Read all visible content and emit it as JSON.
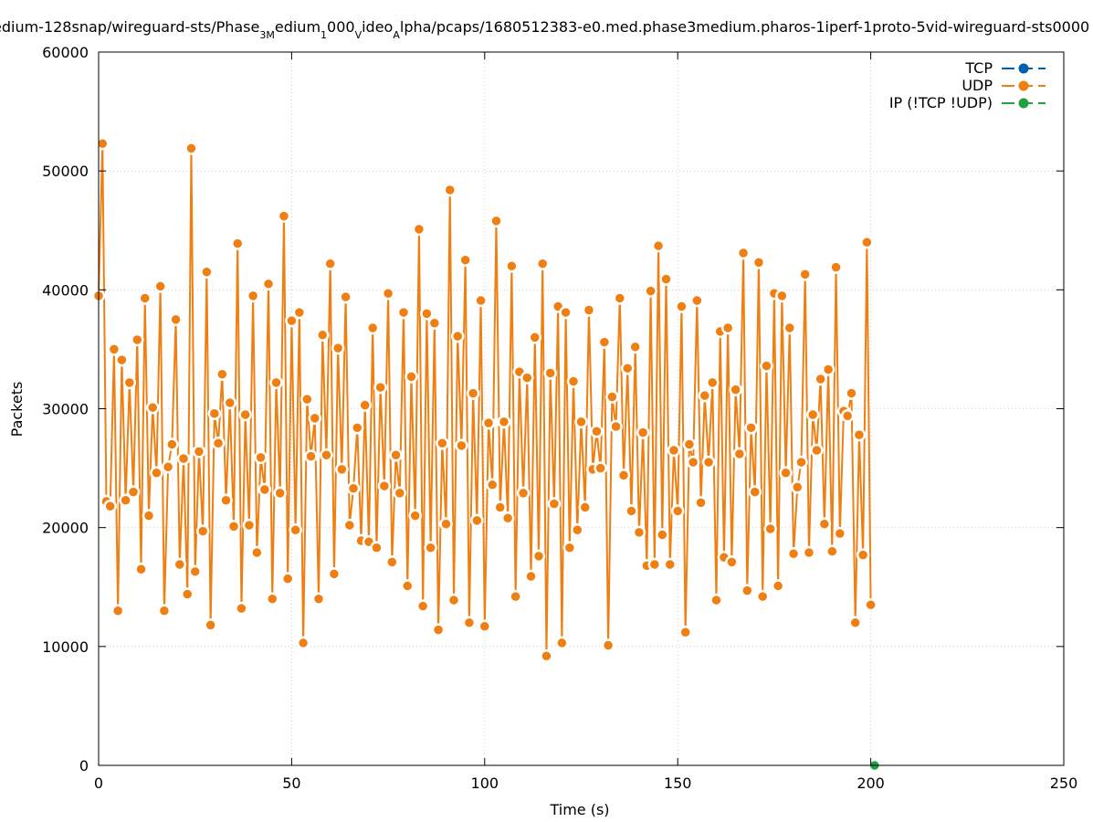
{
  "chart_data": {
    "type": "line",
    "title": {
      "part1": "edium-128snap/wireguard-sts/Phase",
      "sub1": "3M",
      "part2": "edium",
      "sub2": "1",
      "part3": "000",
      "sub3": "V",
      "part4": "ideo",
      "sub4": "A",
      "part5": "lpha/pcaps/1680512383-e0.med.phase3medium.pharos-1iperf-1proto-5vid-wireguard-sts0000"
    },
    "xlabel": "Time (s)",
    "ylabel": "Packets",
    "xlim": [
      0,
      250
    ],
    "ylim": [
      0,
      60000
    ],
    "xticks": [
      0,
      50,
      100,
      150,
      200,
      250
    ],
    "yticks": [
      0,
      10000,
      20000,
      30000,
      40000,
      50000,
      60000
    ],
    "grid": true,
    "legend_position": "top-right",
    "series": [
      {
        "name": "TCP",
        "color": "#0060ad",
        "x": [],
        "y": []
      },
      {
        "name": "UDP",
        "color": "#f07f12",
        "x": [
          0,
          1,
          2,
          3,
          4,
          5,
          6,
          7,
          8,
          9,
          10,
          11,
          12,
          13,
          14,
          15,
          16,
          17,
          18,
          19,
          20,
          21,
          22,
          23,
          24,
          25,
          26,
          27,
          28,
          29,
          30,
          31,
          32,
          33,
          34,
          35,
          36,
          37,
          38,
          39,
          40,
          41,
          42,
          43,
          44,
          45,
          46,
          47,
          48,
          49,
          50,
          51,
          52,
          53,
          54,
          55,
          56,
          57,
          58,
          59,
          60,
          61,
          62,
          63,
          64,
          65,
          66,
          67,
          68,
          69,
          70,
          71,
          72,
          73,
          74,
          75,
          76,
          77,
          78,
          79,
          80,
          81,
          82,
          83,
          84,
          85,
          86,
          87,
          88,
          89,
          90,
          91,
          92,
          93,
          94,
          95,
          96,
          97,
          98,
          99,
          100,
          101,
          102,
          103,
          104,
          105,
          106,
          107,
          108,
          109,
          110,
          111,
          112,
          113,
          114,
          115,
          116,
          117,
          118,
          119,
          120,
          121,
          122,
          123,
          124,
          125,
          126,
          127,
          128,
          129,
          130,
          131,
          132,
          133,
          134,
          135,
          136,
          137,
          138,
          139,
          140,
          141,
          142,
          143,
          144,
          145,
          146,
          147,
          148,
          149,
          150,
          151,
          152,
          153,
          154,
          155,
          156,
          157,
          158,
          159,
          160,
          161,
          162,
          163,
          164,
          165,
          166,
          167,
          168,
          169,
          170,
          171,
          172,
          173,
          174,
          175,
          176,
          177,
          178,
          179,
          180,
          181,
          182,
          183,
          184,
          185,
          186,
          187,
          188,
          189,
          190,
          191,
          192,
          193,
          194,
          195,
          196,
          197,
          198,
          199,
          200
        ],
        "y": [
          39500,
          52300,
          22200,
          21800,
          35000,
          13000,
          34100,
          22300,
          32200,
          23000,
          35800,
          16500,
          39300,
          21000,
          30100,
          24600,
          40300,
          13000,
          25100,
          27000,
          37500,
          16900,
          25800,
          14400,
          51900,
          16300,
          26400,
          19700,
          41500,
          11800,
          29600,
          27100,
          32900,
          22300,
          30500,
          20100,
          43900,
          13200,
          29500,
          20200,
          39500,
          17900,
          25900,
          23200,
          40500,
          14000,
          32200,
          22900,
          46200,
          15700,
          37400,
          19800,
          38100,
          10300,
          30800,
          26000,
          29200,
          14000,
          36200,
          26100,
          42200,
          16100,
          35100,
          24900,
          39400,
          20200,
          23300,
          28400,
          18900,
          30300,
          18800,
          36800,
          18300,
          31800,
          23500,
          39700,
          17100,
          26100,
          22900,
          38100,
          15100,
          32700,
          21000,
          45100,
          13400,
          38000,
          18300,
          37200,
          11400,
          27100,
          20300,
          48400,
          13900,
          36100,
          26900,
          42500,
          12000,
          31300,
          20600,
          39100,
          11700,
          28800,
          23600,
          45800,
          21700,
          28900,
          20800,
          42000,
          14200,
          33100,
          22900,
          32600,
          15900,
          36000,
          17600,
          42200,
          9200,
          33000,
          22000,
          38600,
          10300,
          38100,
          18300,
          32300,
          19800,
          28900,
          21700,
          38300,
          24900,
          28100,
          25000,
          35600,
          10100,
          31000,
          28500,
          39300,
          24400,
          33400,
          21400,
          35200,
          19600,
          28000,
          16800,
          39900,
          16900,
          43700,
          19400,
          40900,
          16900,
          26500,
          21400,
          38600,
          11200,
          27000,
          25500,
          39100,
          22100,
          31100,
          25500,
          32200,
          13900,
          36500,
          17500,
          36800,
          17100,
          31600,
          26200,
          43100,
          14700,
          28400,
          23000,
          42300,
          14200,
          33600,
          19900,
          39700,
          15100,
          39500,
          24600,
          36800,
          17800,
          23400,
          25500,
          41300,
          17900,
          29500,
          26500,
          32500,
          20300,
          33300,
          18000,
          41900,
          19500,
          29800,
          29400,
          31300,
          12000,
          27800,
          17700,
          44000,
          13500
        ]
      },
      {
        "name": "IP (!TCP  !UDP)",
        "color": "#20a040",
        "x": [
          201
        ],
        "y": [
          0
        ]
      }
    ]
  }
}
